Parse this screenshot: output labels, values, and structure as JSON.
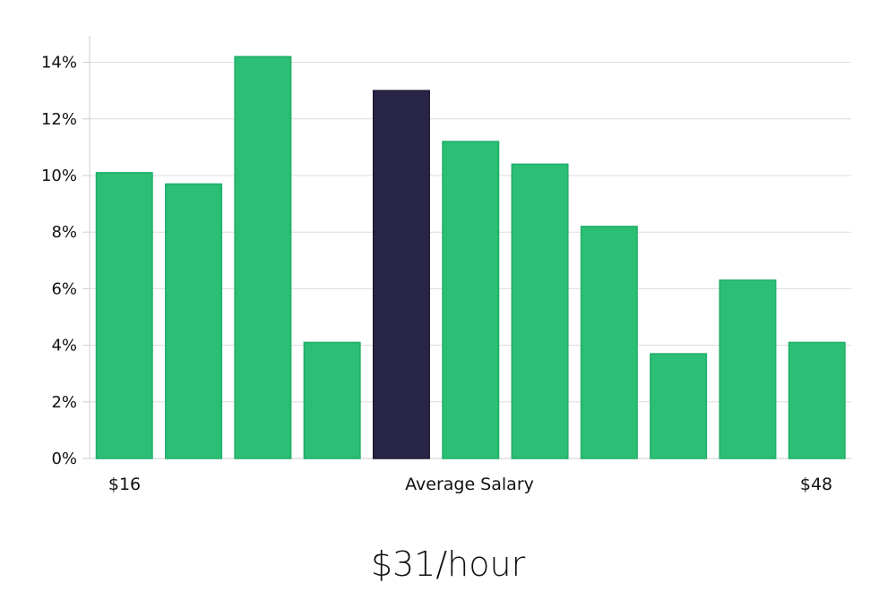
{
  "chart_data": {
    "type": "bar",
    "values": [
      10.1,
      9.7,
      14.2,
      4.1,
      13.0,
      11.2,
      10.4,
      8.2,
      3.7,
      6.3,
      4.1
    ],
    "highlight_index": 4,
    "ylim": [
      0,
      15
    ],
    "y_ticks": [
      0,
      2,
      4,
      6,
      8,
      10,
      12,
      14
    ],
    "y_tick_format": "%",
    "grid": "horizontal",
    "x_axis_labels": {
      "left": "$16",
      "center": "Average Salary",
      "right": "$48"
    },
    "colors": {
      "bar": "#2bbf76",
      "bar_stroke": "#1fae67",
      "highlight": "#282546",
      "grid": "#dcdcdc",
      "axis": "#cfcfcf"
    }
  },
  "headline": "$31/hour"
}
